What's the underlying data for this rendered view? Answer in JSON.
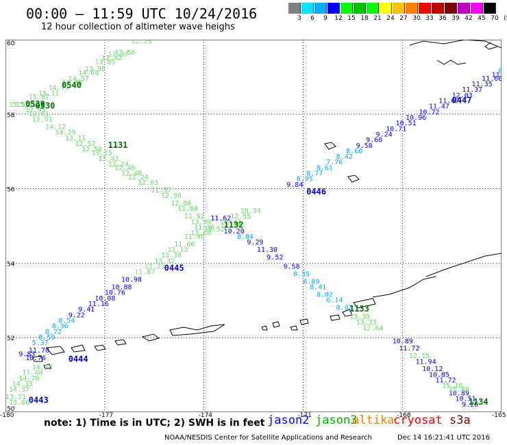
{
  "header": {
    "title": "00:00 – 11:59 UTC 10/24/2016",
    "subtitle": "12 hour collection of altimeter wave heighs"
  },
  "colorbar": {
    "colors": [
      "#808080",
      "#00e5ff",
      "#00b0ff",
      "#0000ff",
      "#00ff00",
      "#00c000",
      "#00ff00",
      "#ffff00",
      "#ffc000",
      "#ff8000",
      "#ff0000",
      "#c00000",
      "#800000",
      "#c000c0",
      "#ff00ff",
      "#000000"
    ],
    "labels": [
      "3",
      "6",
      "9",
      "12",
      "15",
      "18",
      "21",
      "24",
      "27",
      "30",
      "33",
      "36",
      "39",
      "42",
      "45",
      "70"
    ],
    "unit": "(ft)"
  },
  "map": {
    "lon_ticks": [
      "-180",
      "-177",
      "-174",
      "-171",
      "-168",
      "-165"
    ],
    "lat_ticks": [
      "60",
      "58",
      "56",
      "54",
      "52",
      "50"
    ],
    "tracks": [
      {
        "id": "A",
        "color": "#66dd66",
        "points": [
          {
            "lat": 59.9,
            "lon": -176.2,
            "v": "12.25"
          },
          {
            "lat": 59.6,
            "lon": -176.7,
            "v": "12.56"
          },
          {
            "lat": 59.55,
            "lon": -176.9,
            "v": "12.37"
          },
          {
            "lat": 59.45,
            "lon": -177.1,
            "v": "12.42"
          },
          {
            "lat": 59.35,
            "lon": -177.3,
            "v": "13.85"
          },
          {
            "lat": 59.15,
            "lon": -177.6,
            "v": "13.95"
          },
          {
            "lat": 59.05,
            "lon": -177.8,
            "v": "14.04"
          },
          {
            "lat": 58.9,
            "lon": -178.1,
            "v": "14.57"
          },
          {
            "lat": 58.8,
            "lon": -178.3,
            "v": "14.38"
          },
          {
            "lat": 58.65,
            "lon": -178.7,
            "v": "14.71"
          },
          {
            "lat": 58.5,
            "lon": -179.0,
            "v": "15.11"
          },
          {
            "lat": 58.4,
            "lon": -179.3,
            "v": "15.87"
          },
          {
            "lat": 58.2,
            "lon": -179.7,
            "v": "15.55"
          },
          {
            "lat": 58.2,
            "lon": -179.9,
            "v": "15.55"
          },
          {
            "lat": 58.05,
            "lon": -179.4,
            "v": "12.95"
          },
          {
            "lat": 57.95,
            "lon": -179.3,
            "v": "12.61"
          },
          {
            "lat": 57.8,
            "lon": -179.2,
            "v": "12.51"
          },
          {
            "lat": 57.6,
            "lon": -178.8,
            "v": "14.12"
          },
          {
            "lat": 57.45,
            "lon": -178.5,
            "v": "14.29"
          },
          {
            "lat": 57.3,
            "lon": -178.2,
            "v": "13.11"
          },
          {
            "lat": 57.15,
            "lon": -177.9,
            "v": "12.52"
          },
          {
            "lat": 57.0,
            "lon": -177.7,
            "v": "12.56"
          },
          {
            "lat": 56.9,
            "lon": -177.4,
            "v": "13.15"
          },
          {
            "lat": 56.75,
            "lon": -177.2,
            "v": "13.42"
          },
          {
            "lat": 56.6,
            "lon": -176.9,
            "v": "12.24"
          },
          {
            "lat": 56.5,
            "lon": -176.7,
            "v": "12.46"
          },
          {
            "lat": 56.35,
            "lon": -176.5,
            "v": "12.48"
          },
          {
            "lat": 56.25,
            "lon": -176.3,
            "v": "12.24"
          },
          {
            "lat": 56.1,
            "lon": -176.0,
            "v": "12.03"
          },
          {
            "lat": 55.9,
            "lon": -175.6,
            "v": "11.57"
          },
          {
            "lat": 55.75,
            "lon": -175.3,
            "v": "12.90"
          },
          {
            "lat": 55.55,
            "lon": -175.0,
            "v": "12.86"
          },
          {
            "lat": 55.4,
            "lon": -174.8,
            "v": "11.80"
          },
          {
            "lat": 55.2,
            "lon": -174.6,
            "v": "11.92"
          },
          {
            "lat": 55.05,
            "lon": -174.4,
            "v": "13.39"
          },
          {
            "lat": 54.9,
            "lon": -174.3,
            "v": "11.38"
          },
          {
            "lat": 54.85,
            "lon": -174.0,
            "v": "11.52"
          }
        ]
      },
      {
        "id": "B",
        "color": "#66dd66",
        "points": [
          {
            "lat": 54.95,
            "lon": -173.5,
            "v": "11.58"
          },
          {
            "lat": 55.05,
            "lon": -173.5,
            "v": "12.43"
          },
          {
            "lat": 55.2,
            "lon": -173.2,
            "v": "12.55"
          },
          {
            "lat": 55.35,
            "lon": -172.9,
            "v": "10.34"
          },
          {
            "lat": 54.75,
            "lon": -174.4,
            "v": "12.69"
          },
          {
            "lat": 54.65,
            "lon": -174.6,
            "v": "11.40"
          },
          {
            "lat": 54.45,
            "lon": -174.9,
            "v": "11.60"
          },
          {
            "lat": 54.3,
            "lon": -175.1,
            "v": "11.12"
          },
          {
            "lat": 54.15,
            "lon": -175.3,
            "v": "13.30"
          },
          {
            "lat": 54.0,
            "lon": -175.5,
            "v": "13.32"
          },
          {
            "lat": 53.85,
            "lon": -175.8,
            "v": "12.23"
          },
          {
            "lat": 53.7,
            "lon": -176.1,
            "v": "11.87"
          }
        ]
      }
    ],
    "values_blue": [
      {
        "lat": 59.1,
        "lon": -165.1,
        "v": "8.6"
      },
      {
        "lat": 59.0,
        "lon": -165.3,
        "v": "11.22"
      },
      {
        "lat": 58.9,
        "lon": -165.6,
        "v": "11.60"
      },
      {
        "lat": 58.75,
        "lon": -165.9,
        "v": "11.35"
      },
      {
        "lat": 58.6,
        "lon": -166.2,
        "v": "11.37"
      },
      {
        "lat": 58.45,
        "lon": -166.5,
        "v": "12.03"
      },
      {
        "lat": 58.3,
        "lon": -166.9,
        "v": "11.67"
      },
      {
        "lat": 58.15,
        "lon": -167.2,
        "v": "11.47"
      },
      {
        "lat": 58.0,
        "lon": -167.5,
        "v": "10.72"
      },
      {
        "lat": 57.85,
        "lon": -167.9,
        "v": "10.96"
      },
      {
        "lat": 57.7,
        "lon": -168.2,
        "v": "10.51"
      },
      {
        "lat": 57.55,
        "lon": -168.5,
        "v": "10.71"
      },
      {
        "lat": 57.4,
        "lon": -168.8,
        "v": "9.24"
      },
      {
        "lat": 57.25,
        "lon": -169.1,
        "v": "9.60"
      },
      {
        "lat": 57.1,
        "lon": -169.4,
        "v": "9.58"
      },
      {
        "lat": 56.95,
        "lon": -169.7,
        "v": "8.60"
      },
      {
        "lat": 56.8,
        "lon": -170.0,
        "v": "8.42"
      },
      {
        "lat": 56.65,
        "lon": -170.3,
        "v": "7.76"
      },
      {
        "lat": 56.5,
        "lon": -170.6,
        "v": "8.61"
      },
      {
        "lat": 56.35,
        "lon": -170.9,
        "v": "8.77"
      },
      {
        "lat": 56.2,
        "lon": -171.2,
        "v": "8.95"
      },
      {
        "lat": 56.05,
        "lon": -171.5,
        "v": "9.84"
      },
      {
        "lat": 55.15,
        "lon": -173.8,
        "v": "11.62"
      },
      {
        "lat": 54.8,
        "lon": -173.4,
        "v": "10.20"
      },
      {
        "lat": 54.65,
        "lon": -173.0,
        "v": "8.84"
      },
      {
        "lat": 54.5,
        "lon": -172.7,
        "v": "9.29"
      },
      {
        "lat": 54.3,
        "lon": -172.4,
        "v": "11.30"
      },
      {
        "lat": 54.1,
        "lon": -172.1,
        "v": "9.52"
      },
      {
        "lat": 53.85,
        "lon": -171.6,
        "v": "9.58"
      },
      {
        "lat": 53.65,
        "lon": -171.3,
        "v": "8.35"
      },
      {
        "lat": 53.45,
        "lon": -171.0,
        "v": "8.89"
      },
      {
        "lat": 53.3,
        "lon": -170.8,
        "v": "8.41"
      },
      {
        "lat": 53.1,
        "lon": -170.6,
        "v": "8.02"
      },
      {
        "lat": 52.95,
        "lon": -170.3,
        "v": "6.14"
      },
      {
        "lat": 52.75,
        "lon": -170.0,
        "v": "8.01"
      },
      {
        "lat": 53.5,
        "lon": -176.5,
        "v": "10.98"
      },
      {
        "lat": 53.3,
        "lon": -176.8,
        "v": "10.88"
      },
      {
        "lat": 53.15,
        "lon": -177.0,
        "v": "10.76"
      },
      {
        "lat": 53.0,
        "lon": -177.3,
        "v": "10.08"
      },
      {
        "lat": 52.85,
        "lon": -177.5,
        "v": "11.16"
      },
      {
        "lat": 52.7,
        "lon": -177.8,
        "v": "9.41"
      },
      {
        "lat": 52.55,
        "lon": -178.1,
        "v": "9.22"
      },
      {
        "lat": 52.4,
        "lon": -178.4,
        "v": "8.54"
      },
      {
        "lat": 52.25,
        "lon": -178.6,
        "v": "8.36"
      },
      {
        "lat": 52.1,
        "lon": -178.8,
        "v": "8.72"
      },
      {
        "lat": 51.95,
        "lon": -179.0,
        "v": "8.59"
      },
      {
        "lat": 51.8,
        "lon": -179.2,
        "v": "5.37"
      },
      {
        "lat": 51.6,
        "lon": -179.3,
        "v": "11.70"
      },
      {
        "lat": 51.5,
        "lon": -179.6,
        "v": "9.83"
      },
      {
        "lat": 51.4,
        "lon": -179.4,
        "v": "10.76"
      },
      {
        "lat": 51.85,
        "lon": -168.3,
        "v": "10.89"
      },
      {
        "lat": 51.65,
        "lon": -168.1,
        "v": "11.72"
      },
      {
        "lat": 51.3,
        "lon": -167.6,
        "v": "11.94"
      },
      {
        "lat": 51.1,
        "lon": -167.4,
        "v": "10.12"
      },
      {
        "lat": 50.95,
        "lon": -167.2,
        "v": "10.85"
      },
      {
        "lat": 50.8,
        "lon": -167.0,
        "v": "11.72"
      },
      {
        "lat": 50.45,
        "lon": -166.6,
        "v": "10.89"
      },
      {
        "lat": 50.3,
        "lon": -166.4,
        "v": "10.51"
      },
      {
        "lat": 50.15,
        "lon": -166.2,
        "v": "9.26"
      }
    ],
    "values_green": [
      {
        "lat": 52.5,
        "lon": -169.6,
        "v": "13.39"
      },
      {
        "lat": 52.35,
        "lon": -169.4,
        "v": "13.33"
      },
      {
        "lat": 52.2,
        "lon": -169.2,
        "v": "12.84"
      },
      {
        "lat": 51.45,
        "lon": -167.8,
        "v": "12.15"
      },
      {
        "lat": 50.65,
        "lon": -166.8,
        "v": "15.18"
      },
      {
        "lat": 50.55,
        "lon": -166.6,
        "v": "15.80"
      },
      {
        "lat": 51.15,
        "lon": -179.2,
        "v": "14.13"
      },
      {
        "lat": 51.0,
        "lon": -179.5,
        "v": "17.48"
      },
      {
        "lat": 50.85,
        "lon": -179.6,
        "v": "14.70"
      },
      {
        "lat": 50.7,
        "lon": -179.8,
        "v": "14.33"
      },
      {
        "lat": 50.55,
        "lon": -179.9,
        "v": "14.37"
      },
      {
        "lat": 50.35,
        "lon": -180.0,
        "v": "13.71"
      },
      {
        "lat": 50.2,
        "lon": -179.9,
        "v": "13.66"
      }
    ],
    "pass_labels": [
      {
        "lat": 58.7,
        "lon": -178.3,
        "v": "0540",
        "c": "#007000"
      },
      {
        "lat": 58.2,
        "lon": -179.4,
        "v": "0539",
        "c": "#007000"
      },
      {
        "lat": 58.15,
        "lon": -179.1,
        "v": "0530",
        "c": "#007000"
      },
      {
        "lat": 57.1,
        "lon": -176.9,
        "v": "1131",
        "c": "#007000"
      },
      {
        "lat": 58.3,
        "lon": -166.5,
        "v": "0447",
        "c": "#0000c0"
      },
      {
        "lat": 55.85,
        "lon": -170.9,
        "v": "0446",
        "c": "#0000c0"
      },
      {
        "lat": 54.95,
        "lon": -173.4,
        "v": "1132",
        "c": "#007000"
      },
      {
        "lat": 53.8,
        "lon": -175.2,
        "v": "0445",
        "c": "#0000c0"
      },
      {
        "lat": 52.7,
        "lon": -169.6,
        "v": "1133",
        "c": "#007000"
      },
      {
        "lat": 51.35,
        "lon": -178.1,
        "v": "0444",
        "c": "#0000c0"
      },
      {
        "lat": 50.2,
        "lon": -166.0,
        "v": "1134",
        "c": "#007000"
      },
      {
        "lat": 50.25,
        "lon": -179.3,
        "v": "0443",
        "c": "#0000c0"
      }
    ]
  },
  "note": "note: 1) Time is in UTC; 2) SWH is in feet",
  "missions": [
    {
      "name": "jason2",
      "color": "#0000ff"
    },
    {
      "name": "jason3",
      "color": "#00b000"
    },
    {
      "name": "altika",
      "color": "#ff8000"
    },
    {
      "name": "cryosat",
      "color": "#ff0000"
    },
    {
      "name": "s3a",
      "color": "#800000"
    }
  ],
  "footer": {
    "left": "NOAA/NESDIS Center for Satellite Applications and Research",
    "right": "Dec 14 16:21:41 UTC 2016"
  }
}
